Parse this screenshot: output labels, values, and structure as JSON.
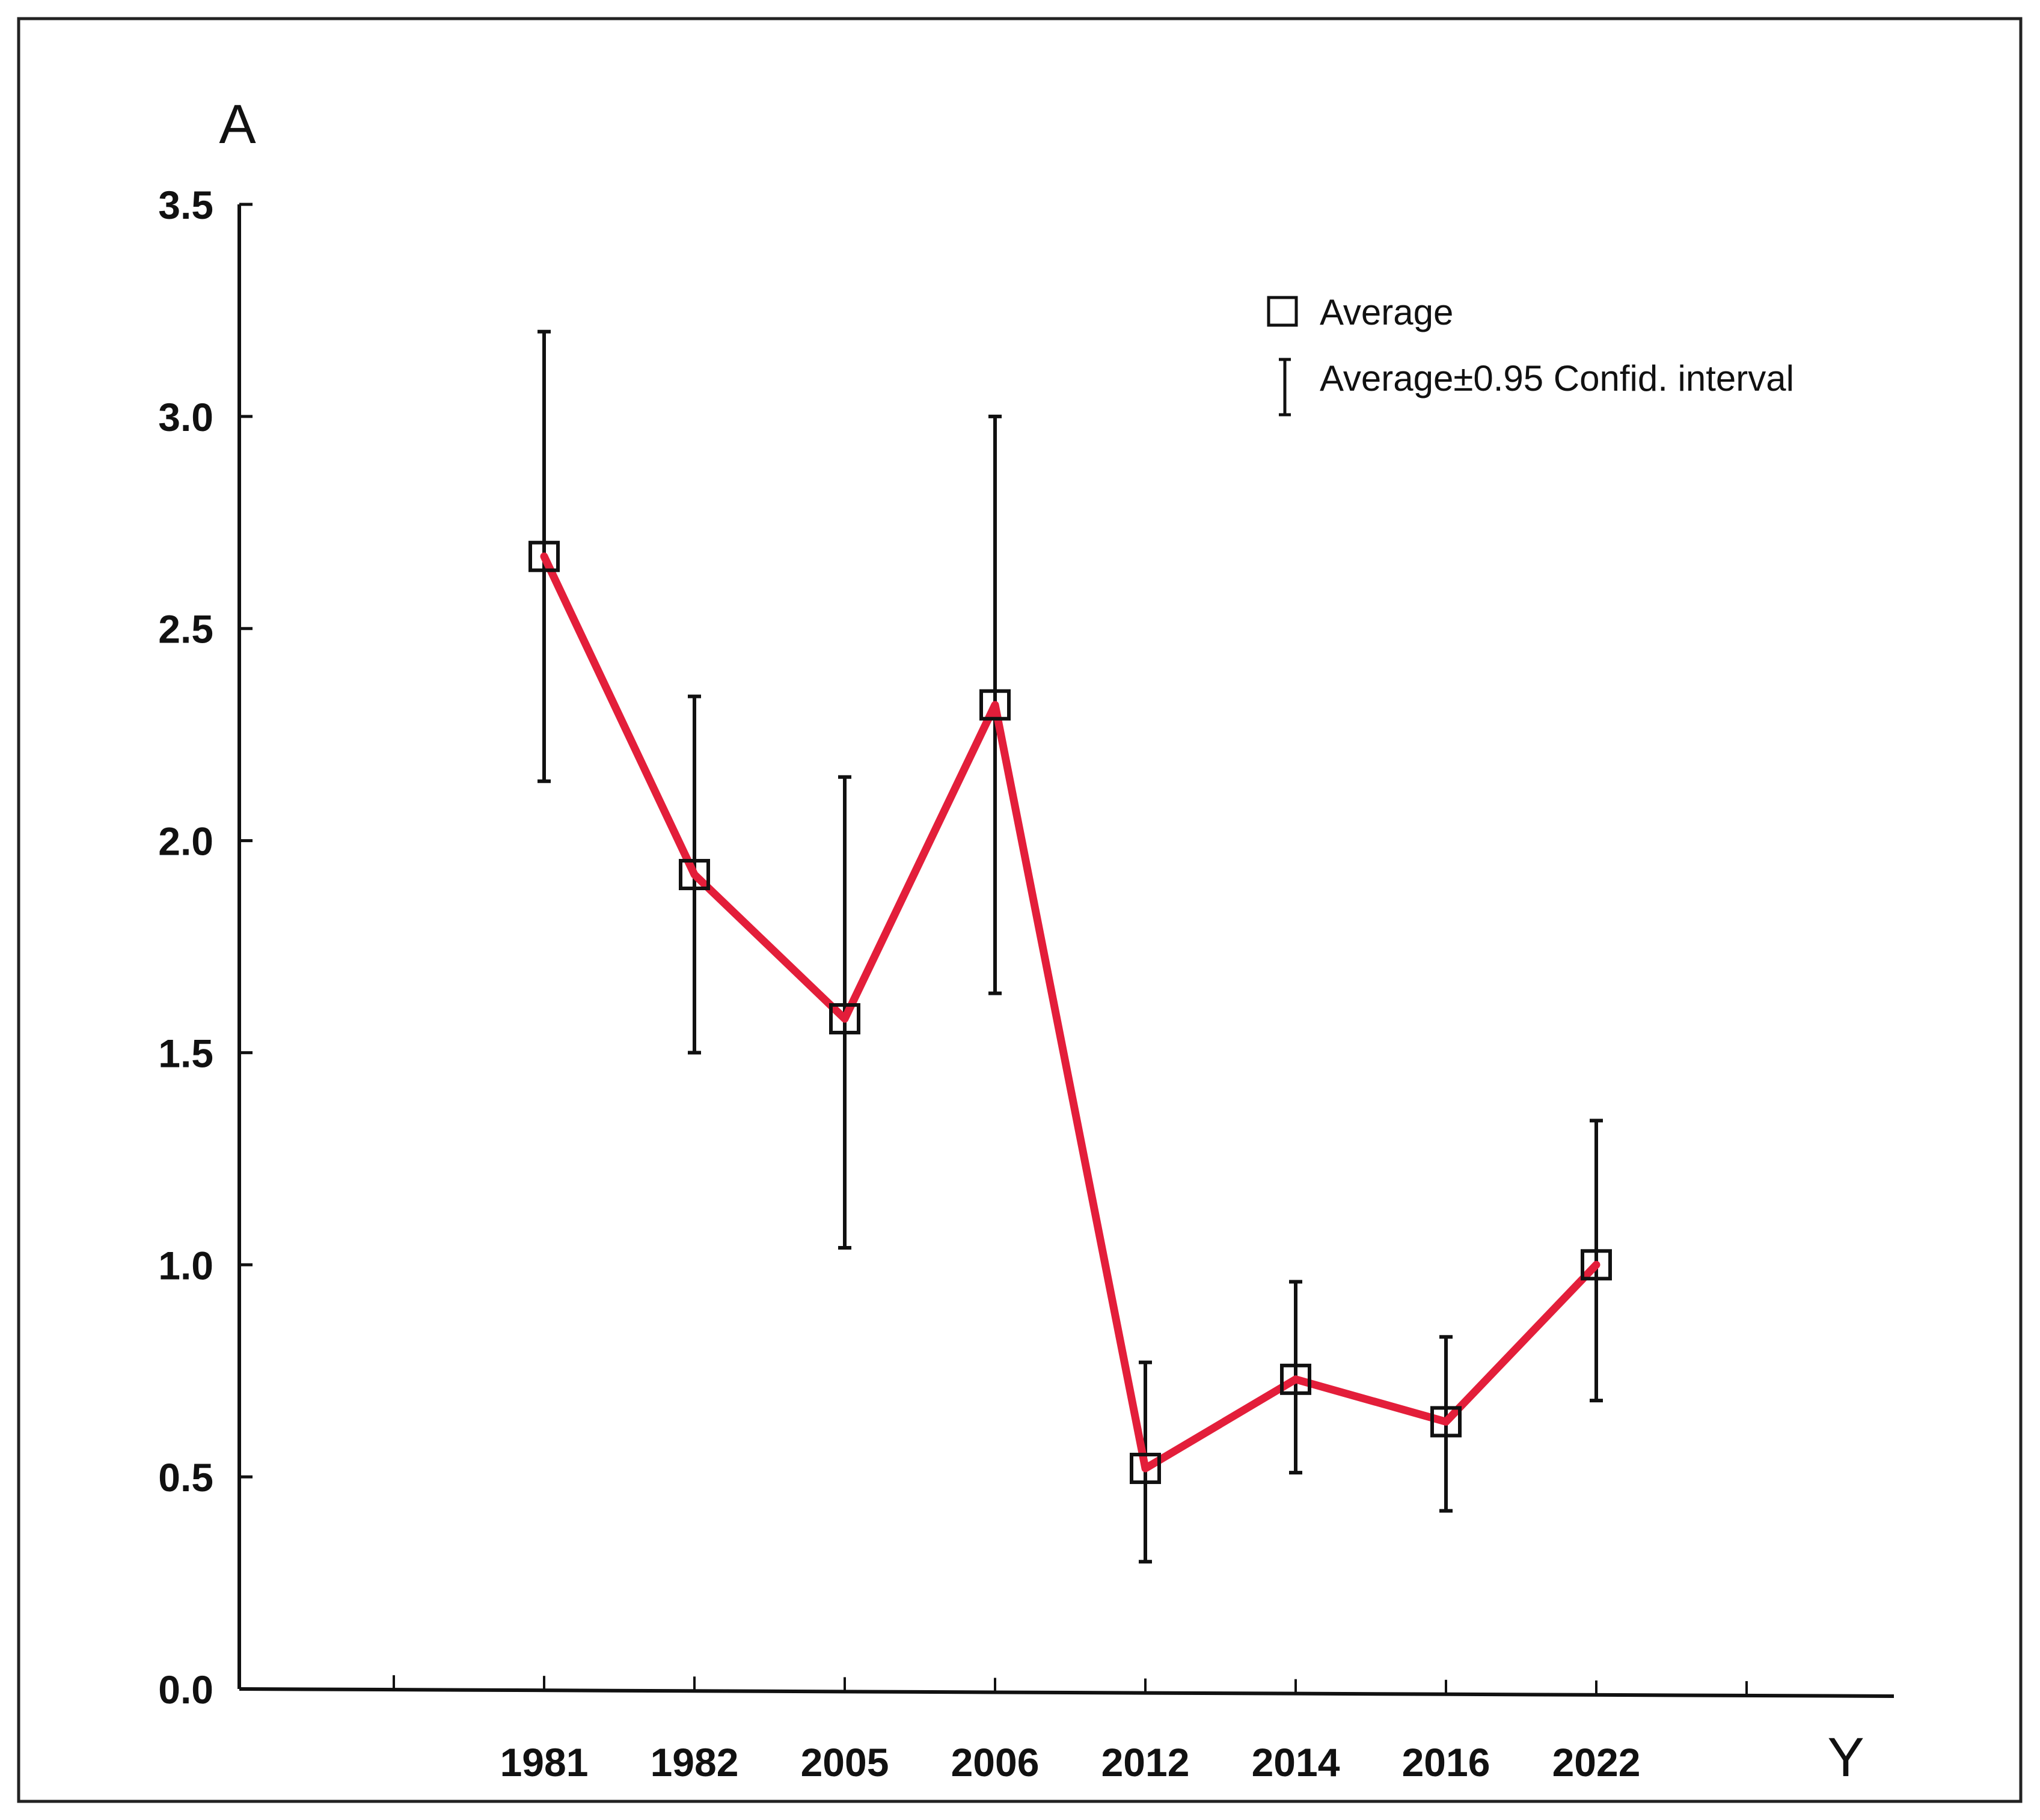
{
  "chart_data": {
    "type": "line",
    "title": "",
    "xlabel": "Y",
    "ylabel": "A",
    "categories": [
      "1981",
      "1982",
      "2005",
      "2006",
      "2012",
      "2014",
      "2016",
      "2022"
    ],
    "ylim": [
      0.0,
      3.5
    ],
    "yticks": [
      "0.0",
      "0.5",
      "1.0",
      "1.5",
      "2.0",
      "2.5",
      "3.0",
      "3.5"
    ],
    "grid": false,
    "legend_position": "top-right",
    "series": [
      {
        "name": "Average",
        "values": [
          2.67,
          1.92,
          1.58,
          2.32,
          0.52,
          0.73,
          0.63,
          1.0
        ],
        "ci_lower": [
          2.14,
          1.5,
          1.04,
          1.64,
          0.3,
          0.51,
          0.42,
          0.68
        ],
        "ci_upper": [
          3.2,
          2.34,
          2.15,
          3.0,
          0.77,
          0.96,
          0.83,
          1.34
        ]
      }
    ],
    "legend": [
      {
        "marker": "square",
        "label": "Average"
      },
      {
        "marker": "whisker",
        "label": "Average±0.95 Confid. interval"
      }
    ],
    "colors": {
      "line": "#e31e3a",
      "marker": "#111111",
      "axis": "#111111"
    }
  }
}
